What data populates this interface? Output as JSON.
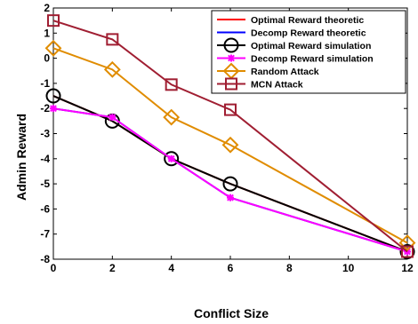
{
  "chart_data": {
    "type": "line",
    "title": "",
    "xlabel": "Conflict Size",
    "ylabel": "Admin Reward",
    "x_categories": [
      "0",
      "2",
      "4",
      "6",
      "8",
      "10",
      "12"
    ],
    "x": [
      0,
      2,
      4,
      6,
      12
    ],
    "yticks": [
      -8,
      -7,
      -6,
      -5,
      -4,
      -3,
      -2,
      -1,
      0,
      1,
      2
    ],
    "ylim": [
      -8,
      2
    ],
    "grid": false,
    "legend_position": "top-right",
    "series": [
      {
        "name": "Optimal Reward theoretic",
        "color": "#ff0000",
        "marker": "none",
        "values": [
          -1.5,
          -2.5,
          -4.0,
          -5.0,
          -7.7
        ]
      },
      {
        "name": "Decomp Reward theoretic",
        "color": "#0000ff",
        "marker": "none",
        "values": [
          -2.0,
          -2.35,
          -4.0,
          -5.55,
          -7.7
        ]
      },
      {
        "name": "Optimal Reward simulation",
        "color": "#000000",
        "marker": "circle",
        "values": [
          -1.5,
          -2.5,
          -4.0,
          -5.0,
          -7.7
        ]
      },
      {
        "name": "Decomp Reward simulation",
        "color": "#ff00ff",
        "marker": "star",
        "values": [
          -2.0,
          -2.35,
          -4.0,
          -5.55,
          -7.7
        ]
      },
      {
        "name": "Random Attack",
        "color": "#e08c00",
        "marker": "diamond",
        "values": [
          0.4,
          -0.45,
          -2.35,
          -3.45,
          -7.35
        ]
      },
      {
        "name": "MCN Attack",
        "color": "#a01e32",
        "marker": "square",
        "values": [
          1.5,
          0.75,
          -1.05,
          -2.05,
          -7.7
        ]
      }
    ]
  }
}
